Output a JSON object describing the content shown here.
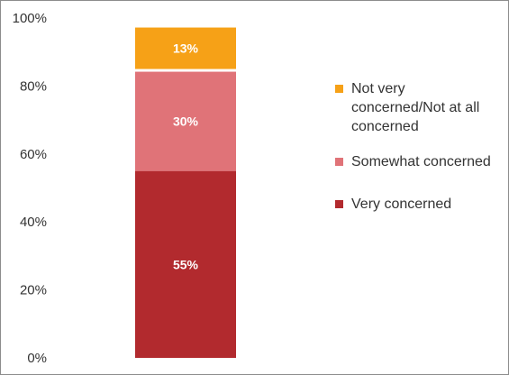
{
  "chart_data": {
    "type": "bar",
    "stacked": true,
    "categories": [
      ""
    ],
    "series": [
      {
        "name": "Very concerned",
        "values": [
          55
        ],
        "label": "55%",
        "color": "#b22a2e"
      },
      {
        "name": "Somewhat concerned",
        "values": [
          30
        ],
        "label": "30%",
        "color": "#e07378"
      },
      {
        "name": "Not very concerned/Not at all concerned",
        "values": [
          13
        ],
        "label": "13%",
        "color": "#f6a117"
      }
    ],
    "ylim": [
      0,
      100
    ],
    "yticks": [
      "0%",
      "20%",
      "40%",
      "60%",
      "80%",
      "100%"
    ],
    "grid": false,
    "legend_position": "right"
  },
  "legend": {
    "items": [
      {
        "label": "Not very concerned/Not at all concerned",
        "color": "#f6a117"
      },
      {
        "label": "Somewhat concerned",
        "color": "#e07378"
      },
      {
        "label": "Very concerned",
        "color": "#b22a2e"
      }
    ]
  }
}
